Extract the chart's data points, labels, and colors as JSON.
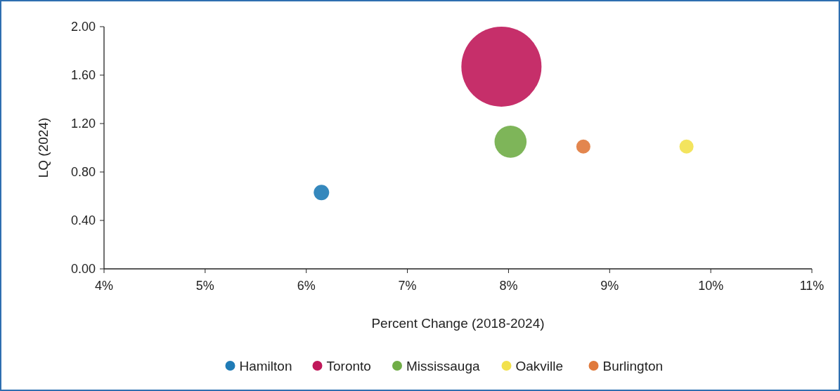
{
  "chart_data": {
    "type": "bubble",
    "xlabel": "Percent Change (2018-2024)",
    "ylabel": "LQ (2024)",
    "xlim": [
      4,
      11
    ],
    "xticks": [
      {
        "value": 4,
        "label": "4%"
      },
      {
        "value": 5,
        "label": "5%"
      },
      {
        "value": 6,
        "label": "6%"
      },
      {
        "value": 7,
        "label": "7%"
      },
      {
        "value": 8,
        "label": "8%"
      },
      {
        "value": 9,
        "label": "9%"
      },
      {
        "value": 10,
        "label": "10%"
      },
      {
        "value": 11,
        "label": "11%"
      }
    ],
    "ylim": [
      0,
      2
    ],
    "yticks": [
      {
        "value": 0,
        "label": "0.00"
      },
      {
        "value": 0.4,
        "label": "0.40"
      },
      {
        "value": 0.8,
        "label": "0.80"
      },
      {
        "value": 1.2,
        "label": "1.20"
      },
      {
        "value": 1.6,
        "label": "1.60"
      },
      {
        "value": 2,
        "label": "2.00"
      }
    ],
    "grid": false,
    "legend": "bottom",
    "marker": "circle",
    "series": [
      {
        "name": "Hamilton",
        "color": "#1f7bb6",
        "x": [
          6.15
        ],
        "values": [
          0.63
        ],
        "sizes": [
          0.037
        ]
      },
      {
        "name": "Toronto",
        "color": "#c0185a",
        "x": [
          7.93
        ],
        "values": [
          1.67
        ],
        "sizes": [
          1
        ]
      },
      {
        "name": "Mississauga",
        "color": "#70ad47",
        "x": [
          8.02
        ],
        "values": [
          1.05
        ],
        "sizes": [
          0.16
        ]
      },
      {
        "name": "Oakville",
        "color": "#f2e14c",
        "x": [
          9.76
        ],
        "values": [
          1.01
        ],
        "sizes": [
          0.031
        ]
      },
      {
        "name": "Burlington",
        "color": "#e0793b",
        "x": [
          8.74
        ],
        "values": [
          1.01
        ],
        "sizes": [
          0.031
        ]
      }
    ]
  }
}
